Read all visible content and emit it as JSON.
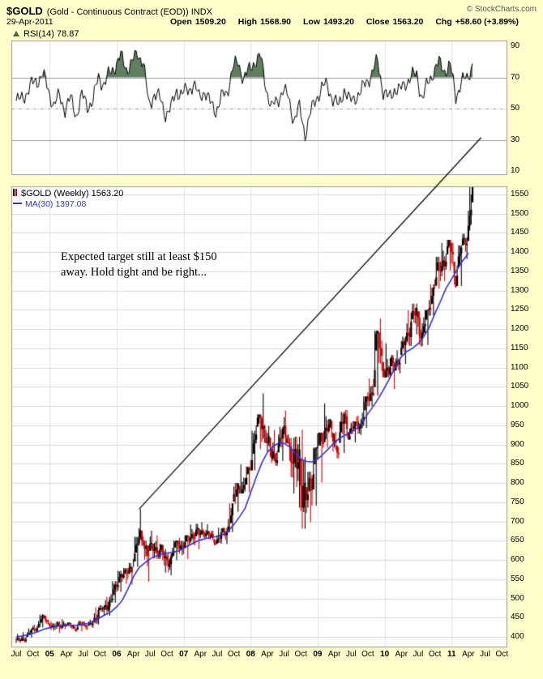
{
  "header": {
    "symbol": "$GOLD",
    "description": "(Gold - Continuous Contract (EOD)) INDX",
    "copyright": "© StockCharts.com",
    "date": "29-Apr-2011",
    "quote": {
      "open_label": "Open",
      "open_value": "1509.20",
      "high_label": "High",
      "high_value": "1568.90",
      "low_label": "Low",
      "low_value": "1493.20",
      "close_label": "Close",
      "close_value": "1563.20",
      "chg_label": "Chg",
      "chg_value": "+58.60 (+3.89%)"
    }
  },
  "rsi_panel": {
    "legend": "RSI(14) 78.87"
  },
  "main_panel": {
    "price_legend": "$GOLD (Weekly) 1563.20",
    "ma_legend": "MA(30) 1397.08",
    "annotation_line1": "Expected target still at least $150",
    "annotation_line2": "away. Hold tight and be right..."
  },
  "colors": {
    "background": "#FFFFCC",
    "plot_bg": "#FFFFFF",
    "grid": "#D9D9D9",
    "year_grid": "#E3E3E3",
    "panel_border": "#999999",
    "candle_up": "#000000",
    "candle_down": "#CC0000",
    "ma_line": "#3333CC",
    "rsi_line": "#000000",
    "rsi_fill": "#5F7F5F",
    "trendline": "#000000",
    "axis_text": "#000000"
  },
  "chart_data": [
    {
      "type": "candlestick",
      "title": "$GOLD (Weekly) 1563.20",
      "name": "Gold - Continuous Contract (EOD)",
      "interval": "weekly (values stored as monthly approximations, Jul-2004 to Apr-2011)",
      "ylim": [
        373,
        1575
      ],
      "y_ticks": [
        1550,
        1500,
        1450,
        1400,
        1350,
        1300,
        1250,
        1200,
        1150,
        1100,
        1050,
        1000,
        950,
        900,
        850,
        800,
        750,
        700,
        650,
        600,
        550,
        500,
        450,
        400
      ],
      "x_tick_labels": [
        "Jul",
        "Oct",
        "05",
        "Apr",
        "Jul",
        "Oct",
        "06",
        "Apr",
        "Jul",
        "Oct",
        "07",
        "Apr",
        "Jul",
        "Oct",
        "08",
        "Apr",
        "Jul",
        "Oct",
        "09",
        "Apr",
        "Jul",
        "Oct",
        "10",
        "Apr",
        "Jul",
        "Oct",
        "11",
        "Apr",
        "Jul",
        "Oct"
      ],
      "year_month_indices": [
        6,
        18,
        30,
        42,
        54,
        66,
        78
      ],
      "close": [
        390,
        400,
        415,
        425,
        453,
        438,
        422,
        435,
        428,
        435,
        418,
        437,
        429,
        433,
        472,
        470,
        495,
        517,
        568,
        561,
        582,
        644,
        653,
        616,
        634,
        623,
        599,
        603,
        646,
        638,
        650,
        672,
        663,
        677,
        659,
        650,
        665,
        673,
        743,
        789,
        783,
        833,
        923,
        971,
        921,
        866,
        885,
        928,
        913,
        833,
        884,
        724,
        816,
        884,
        928,
        952,
        922,
        888,
        975,
        927,
        953,
        953,
        1008,
        1040,
        1175,
        1096,
        1083,
        1118,
        1114,
        1180,
        1215,
        1244,
        1181,
        1248,
        1307,
        1357,
        1385,
        1421,
        1333,
        1411,
        1439,
        1563
      ],
      "high": [
        408,
        412,
        422,
        432,
        458,
        456,
        440,
        440,
        446,
        438,
        432,
        442,
        440,
        445,
        477,
        482,
        504,
        545,
        572,
        579,
        592,
        660,
        732,
        650,
        676,
        664,
        640,
        617,
        650,
        658,
        664,
        692,
        694,
        698,
        693,
        676,
        684,
        684,
        747,
        800,
        848,
        843,
        936,
        978,
        1033,
        948,
        938,
        946,
        988,
        917,
        920,
        938,
        829,
        892,
        931,
        1007,
        966,
        933,
        985,
        990,
        960,
        975,
        1025,
        1072,
        1196,
        1227,
        1163,
        1133,
        1145,
        1181,
        1249,
        1266,
        1246,
        1250,
        1316,
        1388,
        1424,
        1432,
        1424,
        1418,
        1448,
        1569
      ],
      "low": [
        384,
        385,
        398,
        411,
        424,
        432,
        416,
        410,
        420,
        423,
        412,
        414,
        418,
        424,
        432,
        456,
        455,
        489,
        517,
        538,
        536,
        582,
        637,
        543,
        604,
        602,
        567,
        560,
        599,
        612,
        602,
        640,
        628,
        657,
        652,
        638,
        642,
        641,
        672,
        725,
        773,
        776,
        833,
        888,
        904,
        853,
        845,
        857,
        903,
        773,
        736,
        681,
        698,
        741,
        801,
        892,
        882,
        864,
        878,
        913,
        905,
        925,
        943,
        1000,
        1027,
        1075,
        1074,
        1044,
        1085,
        1110,
        1156,
        1186,
        1155,
        1159,
        1235,
        1305,
        1325,
        1352,
        1309,
        1312,
        1382,
        1418
      ],
      "ma30": [
        400,
        402,
        405,
        409,
        414,
        420,
        424,
        427,
        429,
        430,
        430,
        430,
        432,
        436,
        442,
        450,
        458,
        465,
        478,
        495,
        524,
        556,
        580,
        592,
        603,
        610,
        615,
        618,
        620,
        623,
        630,
        638,
        646,
        652,
        656,
        658,
        661,
        666,
        675,
        692,
        712,
        734,
        775,
        815,
        852,
        880,
        895,
        904,
        903,
        893,
        878,
        862,
        856,
        855,
        862,
        875,
        890,
        905,
        917,
        925,
        932,
        942,
        958,
        980,
        1000,
        1022,
        1048,
        1075,
        1105,
        1128,
        1142,
        1150,
        1162,
        1180,
        1205,
        1240,
        1272,
        1306,
        1330,
        1355,
        1378,
        1397
      ],
      "last_close": 1563.2,
      "ma30_last": 1397.08,
      "trendline": {
        "start_month_index": 22,
        "start_price": 732,
        "end_month_index": 83.3,
        "end_price": 1698
      }
    },
    {
      "type": "line",
      "name": "RSI(14)",
      "last": 78.87,
      "ylim": [
        5,
        95
      ],
      "y_ticks": [
        90,
        70,
        50,
        30,
        10
      ],
      "overbought": 70,
      "oversold": 30,
      "midline": 50,
      "values": [
        55,
        60,
        65,
        68,
        72,
        62,
        52,
        58,
        50,
        56,
        46,
        58,
        52,
        55,
        70,
        66,
        72,
        78,
        83,
        76,
        79,
        86,
        80,
        52,
        60,
        56,
        47,
        50,
        62,
        59,
        62,
        66,
        57,
        62,
        53,
        49,
        57,
        60,
        76,
        79,
        70,
        74,
        81,
        83,
        64,
        50,
        55,
        62,
        57,
        43,
        50,
        34,
        47,
        57,
        63,
        65,
        56,
        51,
        63,
        54,
        58,
        60,
        68,
        72,
        81,
        61,
        56,
        63,
        61,
        67,
        70,
        72,
        56,
        66,
        74,
        79,
        75,
        77,
        58,
        67,
        69,
        79
      ]
    }
  ]
}
